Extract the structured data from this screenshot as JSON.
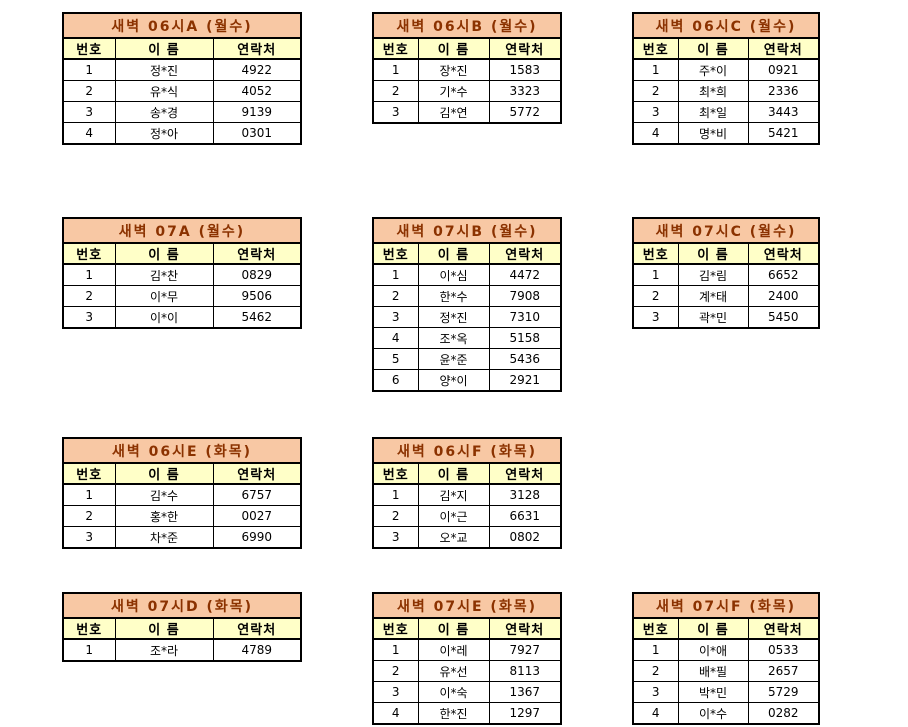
{
  "columns": {
    "no": "번호",
    "name": "이 름",
    "contact": "연락처"
  },
  "colors": {
    "title_bg": "#F8C8A4",
    "title_text": "#8B3200",
    "header_bg": "#FFFFC8",
    "border": "#000000",
    "cell_bg": "#FFFFFF"
  },
  "tables": [
    {
      "title": "새벽 06시A (월수)",
      "rows": [
        [
          "1",
          "정*진",
          "4922"
        ],
        [
          "2",
          "유*식",
          "4052"
        ],
        [
          "3",
          "송*경",
          "9139"
        ],
        [
          "4",
          "정*아",
          "0301"
        ]
      ]
    },
    {
      "title": "새벽 06시B (월수)",
      "rows": [
        [
          "1",
          "장*진",
          "1583"
        ],
        [
          "2",
          "기*수",
          "3323"
        ],
        [
          "3",
          "김*연",
          "5772"
        ]
      ]
    },
    {
      "title": "새벽 06시C (월수)",
      "rows": [
        [
          "1",
          "주*이",
          "0921"
        ],
        [
          "2",
          "최*희",
          "2336"
        ],
        [
          "3",
          "최*일",
          "3443"
        ],
        [
          "4",
          "명*비",
          "5421"
        ]
      ]
    },
    {
      "title": "새벽 07A (월수)",
      "rows": [
        [
          "1",
          "김*찬",
          "0829"
        ],
        [
          "2",
          "이*무",
          "9506"
        ],
        [
          "3",
          "이*이",
          "5462"
        ]
      ]
    },
    {
      "title": "새벽 07시B (월수)",
      "rows": [
        [
          "1",
          "이*심",
          "4472"
        ],
        [
          "2",
          "한*수",
          "7908"
        ],
        [
          "3",
          "정*진",
          "7310"
        ],
        [
          "4",
          "조*옥",
          "5158"
        ],
        [
          "5",
          "윤*준",
          "5436"
        ],
        [
          "6",
          "양*이",
          "2921"
        ]
      ]
    },
    {
      "title": "새벽 07시C (월수)",
      "rows": [
        [
          "1",
          "김*림",
          "6652"
        ],
        [
          "2",
          "계*태",
          "2400"
        ],
        [
          "3",
          "곽*민",
          "5450"
        ]
      ]
    },
    {
      "title": "새벽 06시E (화목)",
      "rows": [
        [
          "1",
          "김*수",
          "6757"
        ],
        [
          "2",
          "홍*한",
          "0027"
        ],
        [
          "3",
          "차*준",
          "6990"
        ]
      ]
    },
    {
      "title": "새벽 06시F (화목)",
      "rows": [
        [
          "1",
          "김*지",
          "3128"
        ],
        [
          "2",
          "이*근",
          "6631"
        ],
        [
          "3",
          "오*교",
          "0802"
        ]
      ]
    },
    {
      "title": "새벽 07시D (화목)",
      "rows": [
        [
          "1",
          "조*라",
          "4789"
        ]
      ]
    },
    {
      "title": "새벽 07시E (화목)",
      "rows": [
        [
          "1",
          "이*레",
          "7927"
        ],
        [
          "2",
          "유*선",
          "8113"
        ],
        [
          "3",
          "이*숙",
          "1367"
        ],
        [
          "4",
          "한*진",
          "1297"
        ]
      ]
    },
    {
      "title": "새벽 07시F (화목)",
      "rows": [
        [
          "1",
          "이*애",
          "0533"
        ],
        [
          "2",
          "배*필",
          "2657"
        ],
        [
          "3",
          "박*민",
          "5729"
        ],
        [
          "4",
          "이*수",
          "0282"
        ]
      ]
    }
  ]
}
